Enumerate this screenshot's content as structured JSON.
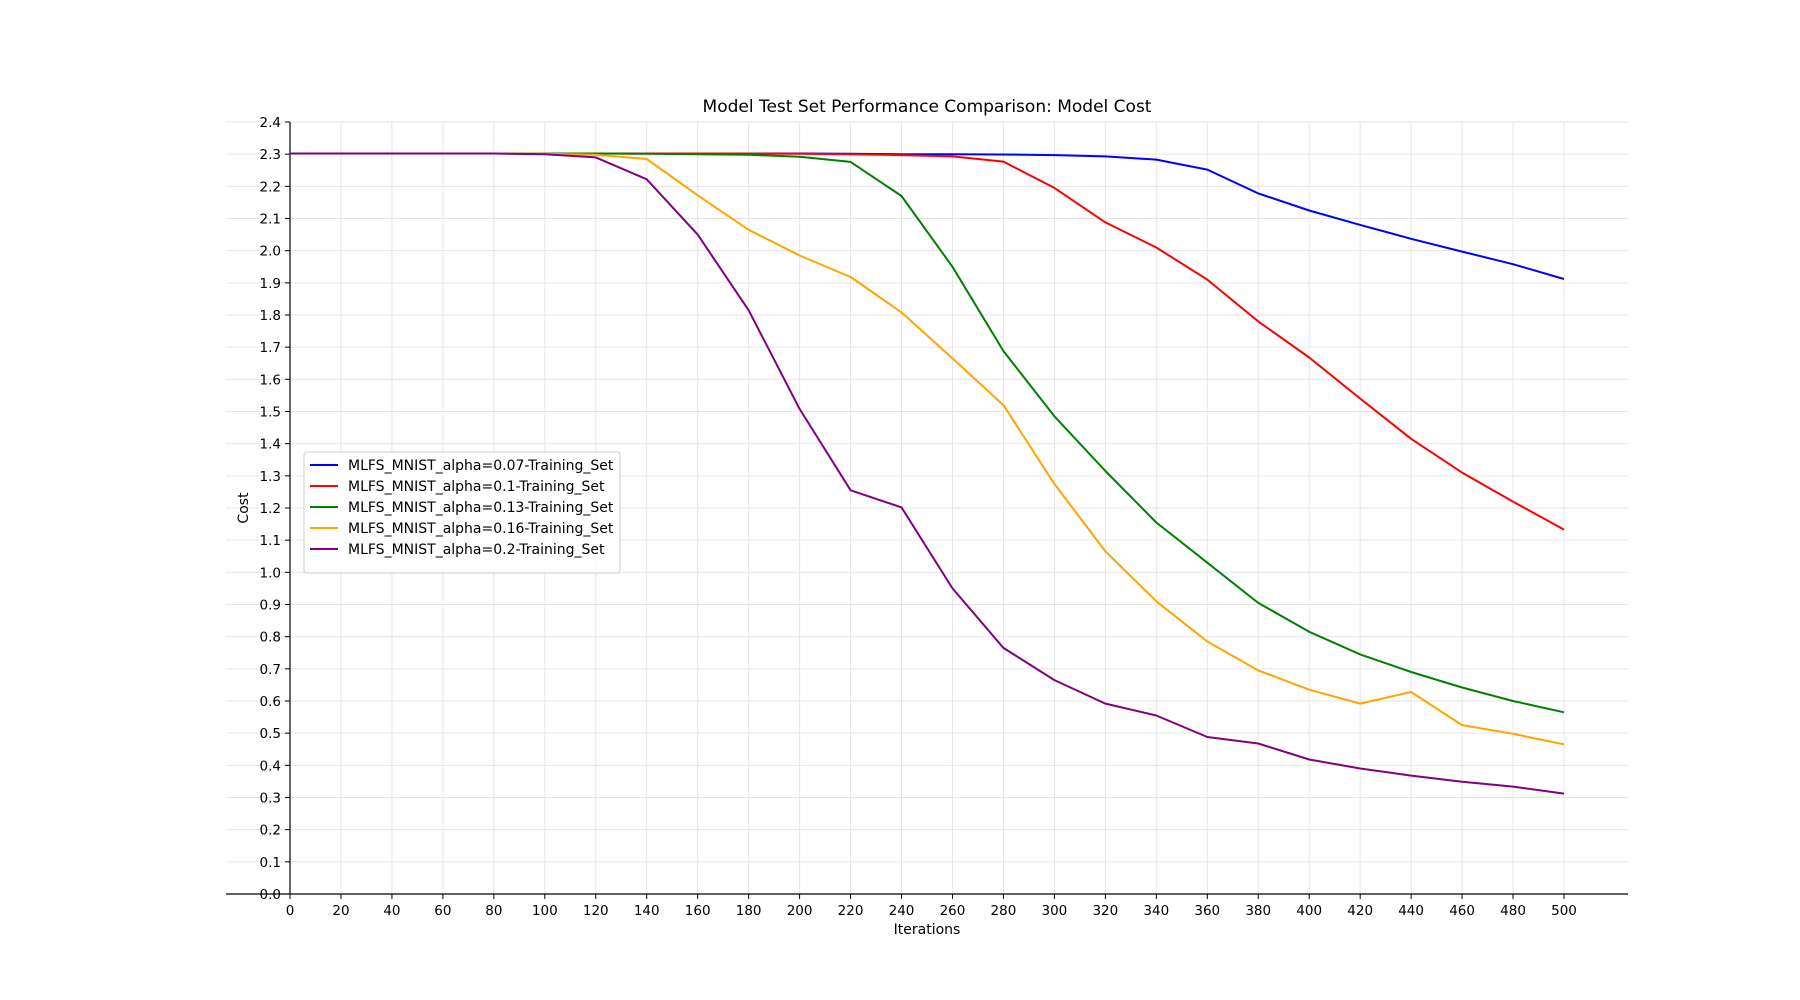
{
  "chart_data": {
    "type": "line",
    "title": "Model Test Set Performance Comparison: Model Cost",
    "xlabel": "Iterations",
    "ylabel": "Cost",
    "xlim": [
      0,
      525
    ],
    "ylim": [
      0.0,
      2.4
    ],
    "xticks": [
      0,
      20,
      40,
      60,
      80,
      100,
      120,
      140,
      160,
      180,
      200,
      220,
      240,
      260,
      280,
      300,
      320,
      340,
      360,
      380,
      400,
      420,
      440,
      460,
      480,
      500
    ],
    "yticks": [
      "0.0",
      "0.1",
      "0.2",
      "0.3",
      "0.4",
      "0.5",
      "0.6",
      "0.7",
      "0.8",
      "0.9",
      "1.0",
      "1.1",
      "1.2",
      "1.3",
      "1.4",
      "1.5",
      "1.6",
      "1.7",
      "1.8",
      "1.9",
      "2.0",
      "2.1",
      "2.2",
      "2.3",
      "2.4"
    ],
    "grid": true,
    "legend_position": "center-left",
    "x": [
      0,
      20,
      40,
      60,
      80,
      100,
      120,
      140,
      160,
      180,
      200,
      220,
      240,
      260,
      280,
      300,
      320,
      340,
      360,
      380,
      400,
      420,
      440,
      460,
      480,
      500
    ],
    "series": [
      {
        "name": "MLFS_MNIST_alpha=0.07-Training_Set",
        "color": "#0000ff",
        "values": [
          2.302,
          2.302,
          2.302,
          2.302,
          2.302,
          2.302,
          2.302,
          2.302,
          2.302,
          2.302,
          2.302,
          2.301,
          2.3,
          2.3,
          2.299,
          2.297,
          2.293,
          2.283,
          2.252,
          2.178,
          2.125,
          2.08,
          2.037,
          1.997,
          1.958,
          1.912
        ]
      },
      {
        "name": "MLFS_MNIST_alpha=0.1-Training_Set",
        "color": "#ff0000",
        "values": [
          2.302,
          2.302,
          2.302,
          2.302,
          2.302,
          2.302,
          2.302,
          2.302,
          2.302,
          2.302,
          2.301,
          2.3,
          2.297,
          2.293,
          2.277,
          2.195,
          2.088,
          2.01,
          1.91,
          1.78,
          1.668,
          1.54,
          1.415,
          1.31,
          1.22,
          1.133
        ]
      },
      {
        "name": "MLFS_MNIST_alpha=0.13-Training_Set",
        "color": "#008000",
        "values": [
          2.302,
          2.302,
          2.302,
          2.302,
          2.302,
          2.302,
          2.302,
          2.301,
          2.3,
          2.298,
          2.292,
          2.276,
          2.17,
          1.95,
          1.688,
          1.485,
          1.315,
          1.155,
          1.03,
          0.905,
          0.815,
          0.745,
          0.69,
          0.642,
          0.6,
          0.565
        ]
      },
      {
        "name": "MLFS_MNIST_alpha=0.16-Training_Set",
        "color": "#ffa500",
        "values": [
          2.302,
          2.302,
          2.302,
          2.302,
          2.302,
          2.301,
          2.298,
          2.285,
          2.172,
          2.065,
          1.985,
          1.918,
          1.808,
          1.665,
          1.52,
          1.275,
          1.065,
          0.91,
          0.785,
          0.695,
          0.635,
          0.592,
          0.628,
          0.525,
          0.498,
          0.465
        ]
      },
      {
        "name": "MLFS_MNIST_alpha=0.2-Training_Set",
        "color": "#800080",
        "values": [
          2.302,
          2.302,
          2.302,
          2.302,
          2.302,
          2.3,
          2.29,
          2.222,
          2.05,
          1.815,
          1.508,
          1.255,
          1.202,
          0.95,
          0.765,
          0.665,
          0.592,
          0.555,
          0.488,
          0.468,
          0.418,
          0.39,
          0.368,
          0.349,
          0.334,
          0.312
        ]
      }
    ]
  }
}
